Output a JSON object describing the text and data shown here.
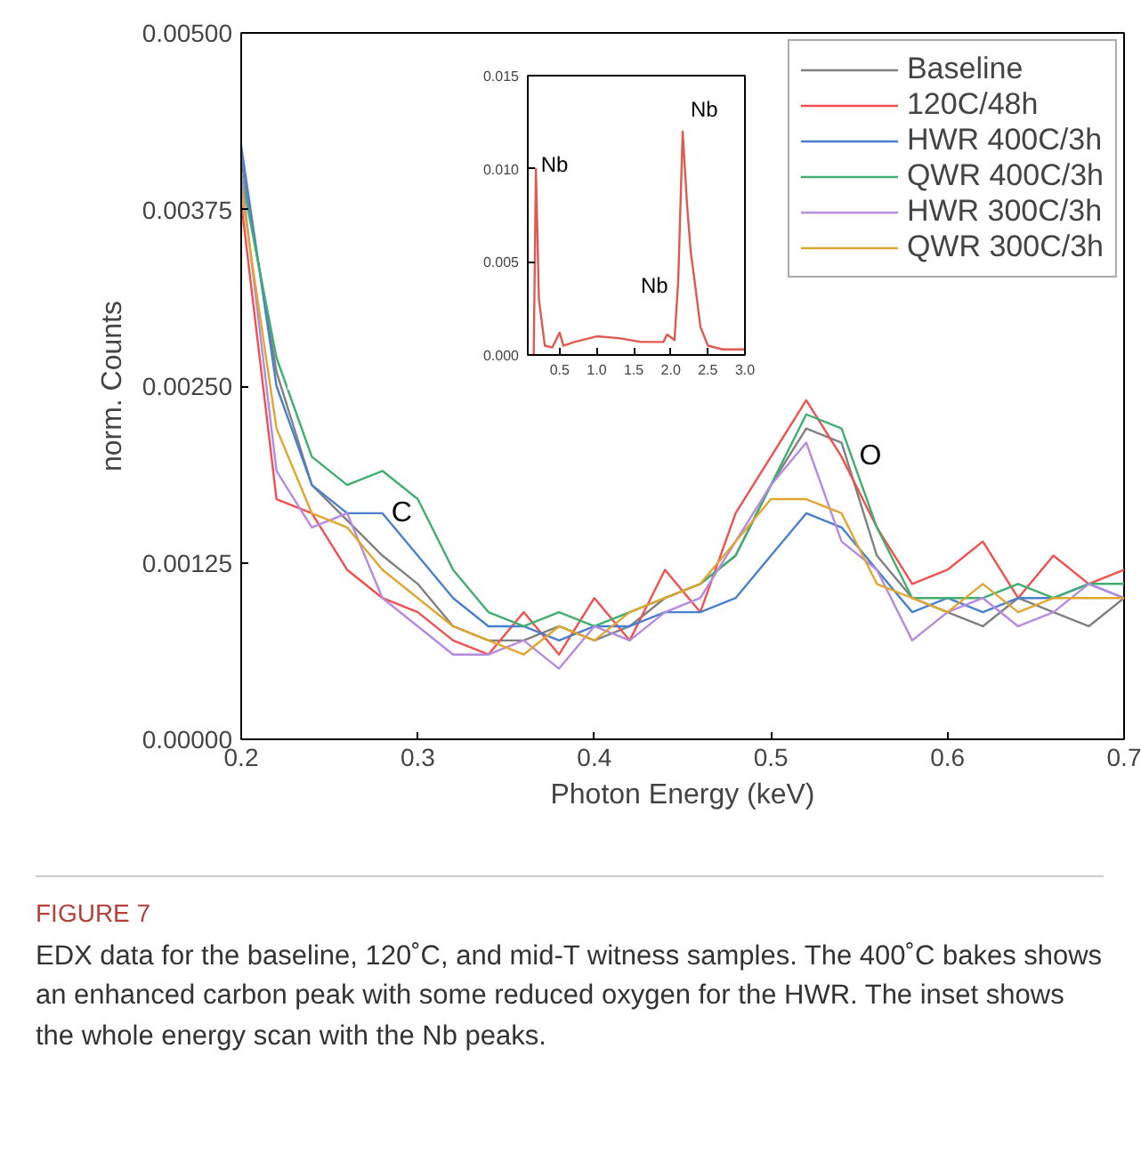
{
  "chart_data": [
    {
      "type": "line",
      "xlabel": "Photon Energy (keV)",
      "ylabel": "norm. Counts",
      "legend": "top right",
      "x": [
        0.2,
        0.22,
        0.24,
        0.26,
        0.28,
        0.3,
        0.32,
        0.34,
        0.36,
        0.38,
        0.4,
        0.42,
        0.44,
        0.46,
        0.48,
        0.5,
        0.52,
        0.54,
        0.56,
        0.58,
        0.6,
        0.62,
        0.64,
        0.66,
        0.68,
        0.7
      ],
      "xlim": [
        0.2,
        0.7
      ],
      "ylim": [
        0,
        0.005
      ],
      "xticks": [
        0.2,
        0.3,
        0.4,
        0.5,
        0.6,
        0.7
      ],
      "yticks": [
        {
          "value": 0,
          "label": "0.00000"
        },
        {
          "value": 0.00125,
          "label": "0.00125"
        },
        {
          "value": 0.0025,
          "label": "0.00250"
        },
        {
          "value": 0.00375,
          "label": "0.00375"
        },
        {
          "value": 0.005,
          "label": "0.00500"
        }
      ],
      "series": [
        {
          "name": "Baseline",
          "color": "#808080",
          "values": [
            0.0041,
            0.0026,
            0.0018,
            0.00155,
            0.0013,
            0.0011,
            0.0008,
            0.0007,
            0.0007,
            0.0008,
            0.0007,
            0.0008,
            0.001,
            0.0011,
            0.0013,
            0.0018,
            0.0022,
            0.0021,
            0.0013,
            0.001,
            0.0009,
            0.0008,
            0.001,
            0.0009,
            0.0008,
            0.001
          ]
        },
        {
          "name": "120C/48h",
          "color": "#f05050",
          "values": [
            0.0038,
            0.0017,
            0.0016,
            0.0012,
            0.001,
            0.0009,
            0.0007,
            0.0006,
            0.0009,
            0.0006,
            0.001,
            0.0007,
            0.0012,
            0.0009,
            0.0016,
            0.002,
            0.0024,
            0.002,
            0.0015,
            0.0011,
            0.0012,
            0.0014,
            0.001,
            0.0013,
            0.0011,
            0.0012
          ]
        },
        {
          "name": "HWR 400C/3h",
          "color": "#4a7fd0",
          "values": [
            0.0042,
            0.0025,
            0.0018,
            0.0016,
            0.0016,
            0.0013,
            0.001,
            0.0008,
            0.0008,
            0.0007,
            0.0008,
            0.0008,
            0.0009,
            0.0009,
            0.001,
            0.0013,
            0.0016,
            0.0015,
            0.0012,
            0.0009,
            0.001,
            0.0009,
            0.001,
            0.001,
            0.0011,
            0.001
          ]
        },
        {
          "name": "QWR 400C/3h",
          "color": "#3fae6f",
          "values": [
            0.004,
            0.0027,
            0.002,
            0.0018,
            0.0019,
            0.0017,
            0.0012,
            0.0009,
            0.0008,
            0.0009,
            0.0008,
            0.0009,
            0.001,
            0.0011,
            0.0013,
            0.0018,
            0.0023,
            0.0022,
            0.0015,
            0.001,
            0.001,
            0.001,
            0.0011,
            0.001,
            0.0011,
            0.0011
          ]
        },
        {
          "name": "HWR 300C/3h",
          "color": "#b58ae0",
          "values": [
            0.004,
            0.0019,
            0.0015,
            0.0016,
            0.001,
            0.0008,
            0.0006,
            0.0006,
            0.0007,
            0.0005,
            0.0008,
            0.0007,
            0.0009,
            0.001,
            0.0014,
            0.0018,
            0.0021,
            0.0014,
            0.0012,
            0.0007,
            0.0009,
            0.001,
            0.0008,
            0.0009,
            0.0011,
            0.001
          ]
        },
        {
          "name": "QWR 300C/3h",
          "color": "#e0a630",
          "values": [
            0.0039,
            0.0022,
            0.0016,
            0.0015,
            0.0012,
            0.001,
            0.0008,
            0.0007,
            0.0006,
            0.0008,
            0.0007,
            0.0009,
            0.001,
            0.0011,
            0.0014,
            0.0017,
            0.0017,
            0.0016,
            0.0011,
            0.001,
            0.0009,
            0.0011,
            0.0009,
            0.001,
            0.001,
            0.001
          ]
        }
      ],
      "annotations": [
        "C",
        "O",
        "FIGURE 7",
        "EDX data for the baseline, 120˚C, and mid-T witness samples. The 400˚C bakes shows an enhanced carbon peak with some reduced oxygen for the HWR. The inset shows the whole energy scan with the Nb peaks."
      ]
    },
    {
      "type": "line",
      "x": [
        0.12,
        0.15,
        0.18,
        0.22,
        0.3,
        0.4,
        0.5,
        0.55,
        0.7,
        1.0,
        1.3,
        1.6,
        1.9,
        1.95,
        2.05,
        2.1,
        2.16,
        2.22,
        2.27,
        2.32,
        2.4,
        2.5,
        2.7,
        3.0
      ],
      "xlim": [
        0.07,
        3.0
      ],
      "ylim": [
        0,
        0.015
      ],
      "xticks": [
        0.5,
        {
          "value": 1.0,
          "label": "1.0"
        },
        1.5,
        {
          "value": 2.0,
          "label": "2.0"
        },
        2.5,
        {
          "value": 3.0,
          "label": "3.0"
        }
      ],
      "yticks": [
        {
          "value": 0,
          "label": "0.000"
        },
        {
          "value": 0.005,
          "label": "0.005"
        },
        {
          "value": 0.01,
          "label": "0.010"
        },
        {
          "value": 0.015,
          "label": "0.015"
        }
      ],
      "series": [
        {
          "color": "#e0584e",
          "values": [
            0,
            0,
            0.01,
            0.003,
            0.0005,
            0.0004,
            0.0012,
            0.0005,
            0.0007,
            0.001,
            0.0009,
            0.0007,
            0.0007,
            0.0011,
            0.0008,
            0.004,
            0.012,
            0.008,
            0.0055,
            0.004,
            0.0015,
            0.0005,
            0.0003,
            0.0003
          ]
        }
      ],
      "annotations": [
        "Nb",
        "Nb",
        "Nb"
      ]
    }
  ]
}
